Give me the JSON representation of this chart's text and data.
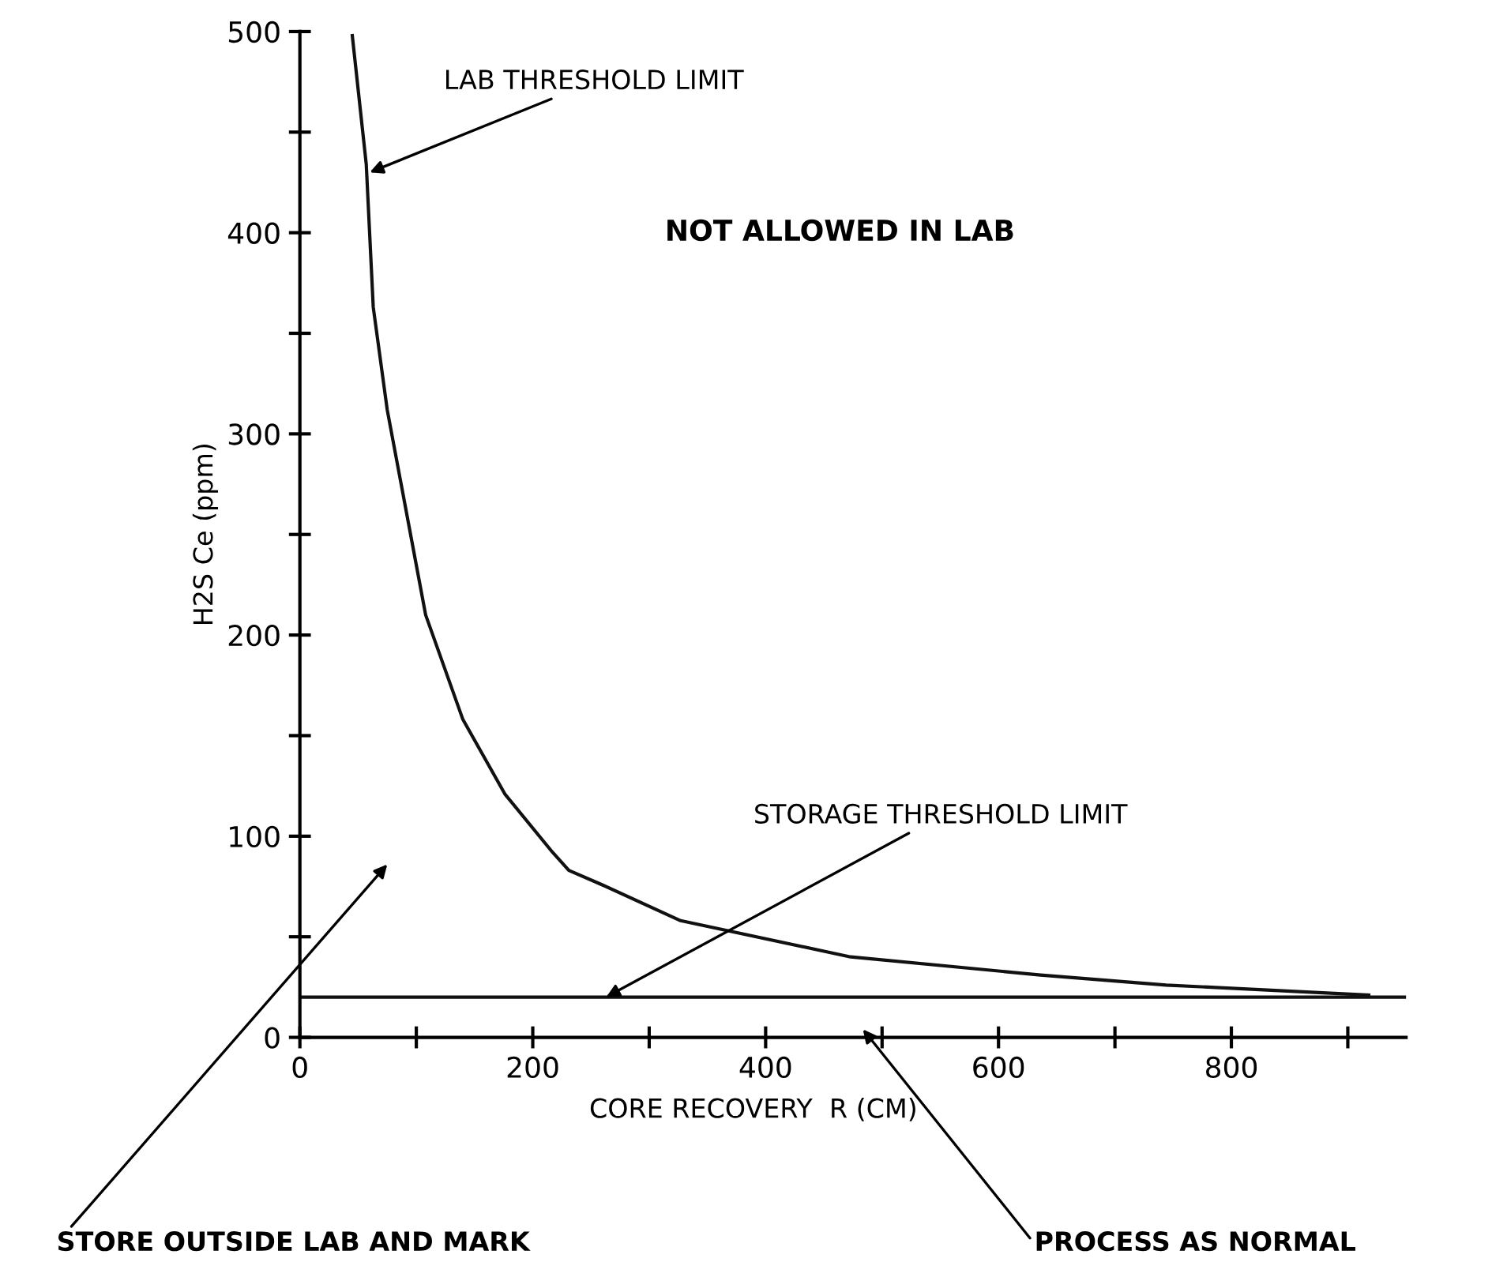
{
  "chart_data": {
    "type": "line",
    "xlabel": "CORE RECOVERY  R (CM)",
    "ylabel": "H2S Ce (ppm)",
    "series": [
      {
        "color": "#111111",
        "x": [
          45,
          57,
          63,
          75,
          108,
          140,
          176,
          217,
          231,
          259,
          327,
          473,
          636,
          744,
          918
        ],
        "values": [
          498,
          434,
          363,
          312,
          210,
          158,
          121,
          92,
          83,
          76,
          58,
          40,
          31,
          26,
          21
        ]
      }
    ],
    "ref_lines": [
      {
        "axis": "y",
        "value": 20,
        "color": "#111111"
      }
    ],
    "annotations": [
      {
        "text": "LAB THRESHOLD LIMIT",
        "x": 60,
        "y": 430
      },
      "NOT ALLOWED IN LAB",
      {
        "text": "STORAGE THRESHOLD LIMIT",
        "x": 263,
        "y": 20
      },
      "STORE OUTSIDE LAB AND MARK",
      "PROCESS AS NORMAL"
    ],
    "xlim": [
      0,
      950
    ],
    "ylim": [
      0,
      500
    ],
    "xticks": [
      0,
      {
        "value": 100,
        "label": null
      },
      200,
      {
        "value": 300,
        "label": null
      },
      400,
      {
        "value": 500,
        "label": null
      },
      600,
      {
        "value": 700,
        "label": null
      },
      800,
      {
        "value": 900,
        "label": null
      }
    ],
    "yticks": [
      0,
      {
        "value": 50,
        "label": null
      },
      100,
      {
        "value": 150,
        "label": null
      },
      200,
      {
        "value": 250,
        "label": null
      },
      300,
      {
        "value": 350,
        "label": null
      },
      400,
      {
        "value": 450,
        "label": null
      },
      500
    ],
    "grid": false,
    "legend": false,
    "marker": "none",
    "line_style": "solid"
  }
}
